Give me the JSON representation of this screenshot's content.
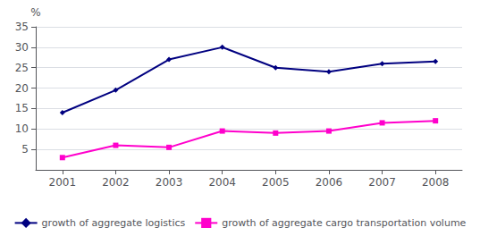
{
  "chart_data": {
    "type": "line",
    "ylabel": "%",
    "x": [
      2001,
      2002,
      2003,
      2004,
      2005,
      2006,
      2007,
      2008
    ],
    "series": [
      {
        "name": "growth of aggregate logistics",
        "color": "#000080",
        "marker": "diamond",
        "values": [
          14,
          19.5,
          27,
          30,
          25,
          24,
          26,
          26.5
        ]
      },
      {
        "name": "growth of aggregate cargo transportation volume",
        "color": "#FF00CC",
        "marker": "square",
        "values": [
          3,
          6,
          5.5,
          9.5,
          9,
          9.5,
          11.5,
          12
        ]
      }
    ],
    "xlim": [
      2000.5,
      2008.5
    ],
    "xticks": [
      2001,
      2002,
      2003,
      2004,
      2005,
      2006,
      2007,
      2008
    ],
    "ylim": [
      0,
      35
    ],
    "yticks": [
      5,
      10,
      15,
      20,
      25,
      30,
      35
    ],
    "grid": true,
    "legend": "bottom"
  }
}
